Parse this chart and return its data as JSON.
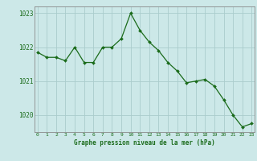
{
  "x": [
    0,
    1,
    2,
    3,
    4,
    5,
    6,
    7,
    8,
    9,
    10,
    11,
    12,
    13,
    14,
    15,
    16,
    17,
    18,
    19,
    20,
    21,
    22,
    23
  ],
  "y": [
    1021.85,
    1021.7,
    1021.7,
    1021.6,
    1022.0,
    1021.55,
    1021.55,
    1022.0,
    1022.0,
    1022.25,
    1023.0,
    1022.5,
    1022.15,
    1021.9,
    1021.55,
    1021.3,
    1020.95,
    1021.0,
    1021.05,
    1020.85,
    1020.45,
    1020.0,
    1019.65,
    1019.75
  ],
  "ylim": [
    1019.5,
    1023.2
  ],
  "yticks": [
    1020,
    1021,
    1022,
    1023
  ],
  "xticks": [
    0,
    1,
    2,
    3,
    4,
    5,
    6,
    7,
    8,
    9,
    10,
    11,
    12,
    13,
    14,
    15,
    16,
    17,
    18,
    19,
    20,
    21,
    22,
    23
  ],
  "line_color": "#1a6b1a",
  "marker_color": "#1a6b1a",
  "bg_color": "#cce8e8",
  "grid_color": "#aacccc",
  "xlabel": "Graphe pression niveau de la mer (hPa)",
  "xlabel_color": "#1a6b1a",
  "tick_color": "#1a6b1a",
  "axis_color": "#888888",
  "font_family": "monospace"
}
